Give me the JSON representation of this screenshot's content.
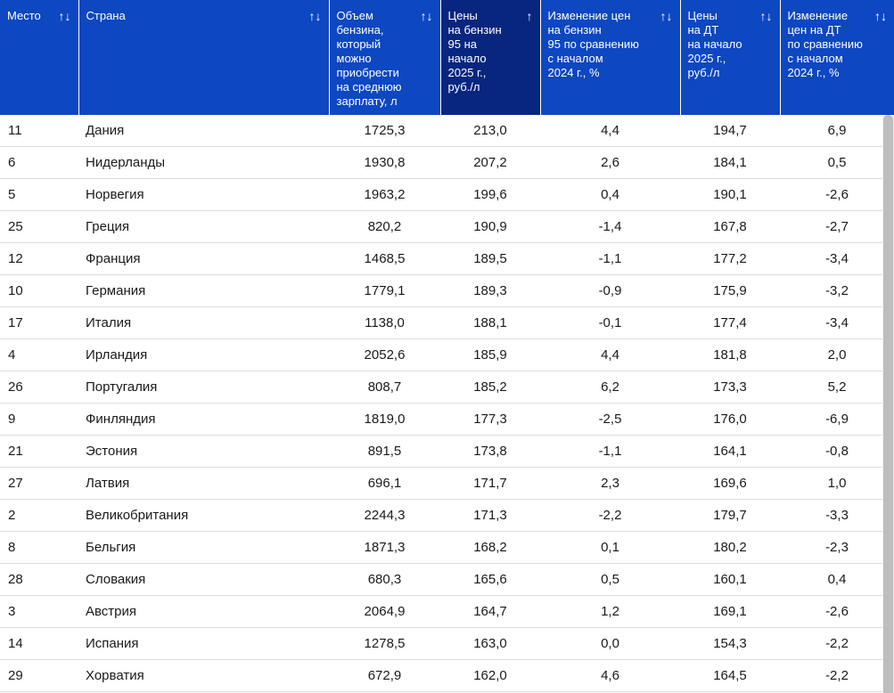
{
  "table": {
    "columns": [
      {
        "label": "Место",
        "sort": "↑↓"
      },
      {
        "label": "Страна",
        "sort": "↑↓"
      },
      {
        "label": "Объем\nбензина,\nкоторый\nможно\nприобрести\nна среднюю\nзарплату, л",
        "sort": "↑↓"
      },
      {
        "label": "Цены\nна бензин\n95 на\nначало\n2025 г.,\nруб./л",
        "sort": "↑"
      },
      {
        "label": "Изменение цен\nна бензин\n95 по сравнению\nс началом\n2024 г., %",
        "sort": "↑↓"
      },
      {
        "label": "Цены\nна ДТ\nна начало\n2025 г.,\nруб./л",
        "sort": "↑↓"
      },
      {
        "label": "Изменение\nцен на ДТ\nпо сравнению\nс началом\n2024 г., %",
        "sort": "↑↓"
      }
    ],
    "active_column_color": "#08267f",
    "header_color": "#0d47c1",
    "rows": [
      [
        "11",
        "Дания",
        "1725,3",
        "213,0",
        "4,4",
        "194,7",
        "6,9"
      ],
      [
        "6",
        "Нидерланды",
        "1930,8",
        "207,2",
        "2,6",
        "184,1",
        "0,5"
      ],
      [
        "5",
        "Норвегия",
        "1963,2",
        "199,6",
        "0,4",
        "190,1",
        "-2,6"
      ],
      [
        "25",
        "Греция",
        "820,2",
        "190,9",
        "-1,4",
        "167,8",
        "-2,7"
      ],
      [
        "12",
        "Франция",
        "1468,5",
        "189,5",
        "-1,1",
        "177,2",
        "-3,4"
      ],
      [
        "10",
        "Германия",
        "1779,1",
        "189,3",
        "-0,9",
        "175,9",
        "-3,2"
      ],
      [
        "17",
        "Италия",
        "1138,0",
        "188,1",
        "-0,1",
        "177,4",
        "-3,4"
      ],
      [
        "4",
        "Ирландия",
        "2052,6",
        "185,9",
        "4,4",
        "181,8",
        "2,0"
      ],
      [
        "26",
        "Португалия",
        "808,7",
        "185,2",
        "6,2",
        "173,3",
        "5,2"
      ],
      [
        "9",
        "Финляндия",
        "1819,0",
        "177,3",
        "-2,5",
        "176,0",
        "-6,9"
      ],
      [
        "21",
        "Эстония",
        "891,5",
        "173,8",
        "-1,1",
        "164,1",
        "-0,8"
      ],
      [
        "27",
        "Латвия",
        "696,1",
        "171,7",
        "2,3",
        "169,6",
        "1,0"
      ],
      [
        "2",
        "Великобритания",
        "2244,3",
        "171,3",
        "-2,2",
        "179,7",
        "-3,3"
      ],
      [
        "8",
        "Бельгия",
        "1871,3",
        "168,2",
        "0,1",
        "180,2",
        "-2,3"
      ],
      [
        "28",
        "Словакия",
        "680,3",
        "165,6",
        "0,5",
        "160,1",
        "0,4"
      ],
      [
        "3",
        "Австрия",
        "2064,9",
        "164,7",
        "1,2",
        "169,1",
        "-2,6"
      ],
      [
        "14",
        "Испания",
        "1278,5",
        "163,0",
        "0,0",
        "154,3",
        "-2,2"
      ],
      [
        "29",
        "Хорватия",
        "672,9",
        "162,0",
        "4,6",
        "164,5",
        "-2,2"
      ]
    ]
  }
}
